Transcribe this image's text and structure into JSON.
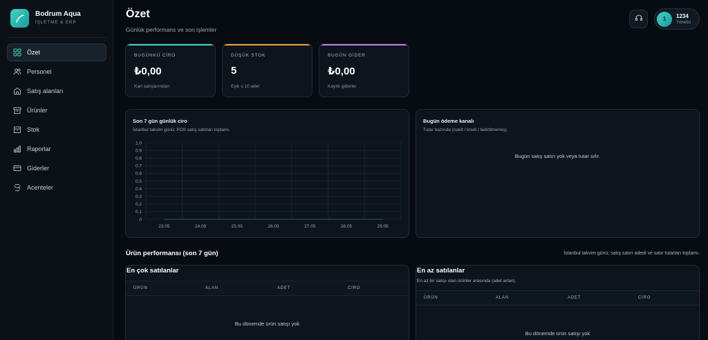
{
  "brand": {
    "name": "Bodrum Aqua",
    "subtitle": "İŞLETME & ERP"
  },
  "nav": [
    {
      "label": "Özet",
      "icon": "grid-icon",
      "active": true
    },
    {
      "label": "Personel",
      "icon": "users-icon",
      "active": false
    },
    {
      "label": "Satış alanları",
      "icon": "store-icon",
      "active": false
    },
    {
      "label": "Ürünler",
      "icon": "archive-icon",
      "active": false
    },
    {
      "label": "Stok",
      "icon": "box-icon",
      "active": false
    },
    {
      "label": "Raporlar",
      "icon": "bar-chart-icon",
      "active": false
    },
    {
      "label": "Giderler",
      "icon": "card-icon",
      "active": false
    },
    {
      "label": "Acenteler",
      "icon": "agency-icon",
      "active": false
    }
  ],
  "header": {
    "title": "Özet",
    "subtitle": "Günlük performans ve son işlemler"
  },
  "user": {
    "avatar": "1",
    "name": "1234",
    "role": "Yönetici"
  },
  "kpis": [
    {
      "label": "BUGÜNKÜ CİRO",
      "value": "₺0,00",
      "sub": "Kart satışlarından",
      "color": "#3fd6bd"
    },
    {
      "label": "DÜŞÜK STOK",
      "value": "5",
      "sub": "Eşik ≤ 10 adet",
      "color": "#f0a13a"
    },
    {
      "label": "BUGÜN GİDER",
      "value": "₺0,00",
      "sub": "Kayıtlı giderler",
      "color": "#c07ae6"
    }
  ],
  "revenue_chart": {
    "title": "Son 7 gün günlük ciro",
    "subtitle": "İstanbul takvim günü; POS satış satırları toplamı."
  },
  "chart_data": {
    "type": "line",
    "categories": [
      "23.05",
      "24.05",
      "25.05",
      "26.05",
      "27.05",
      "28.05",
      "29.05"
    ],
    "values": [
      0,
      0,
      0,
      0,
      0,
      0,
      0
    ],
    "y_ticks": [
      "0",
      "0.1",
      "0.2",
      "0.3",
      "0.4",
      "0.5",
      "0.6",
      "0.7",
      "0.8",
      "0.9",
      "1.0"
    ],
    "ylim": [
      0,
      1
    ],
    "grid": true
  },
  "payment_panel": {
    "title": "Bugün ödeme kanalı",
    "subtitle": "Tutar bazında (nakit / kredi / belirtilmemiş).",
    "empty": "Bugün satış satırı yok veya tutar sıfır."
  },
  "product_section": {
    "title": "Ürün performansı (son 7 gün)",
    "note": "İstanbul takvim günü; satış satırı adedi ve satır tutarları toplamı."
  },
  "best_sellers": {
    "title": "En çok satılanlar",
    "columns": [
      "ÜRÜN",
      "ALAN",
      "ADET",
      "CİRO"
    ],
    "empty": "Bu dönemde ürün satışı yok"
  },
  "least_sellers": {
    "title": "En az satılanlar",
    "subtitle": "En az bir satışı olan ürünler arasında (adet artan).",
    "columns": [
      "ÜRÜN",
      "ALAN",
      "ADET",
      "CİRO"
    ],
    "empty": "Bu dönemde ürün satışı yok"
  }
}
